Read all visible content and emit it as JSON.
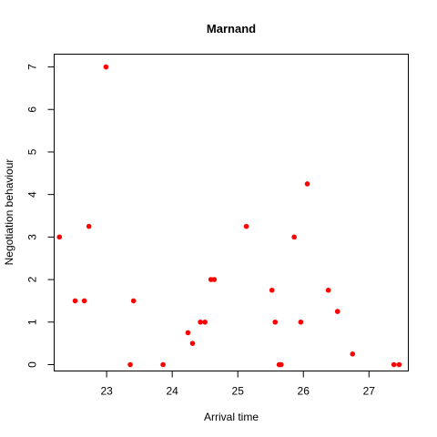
{
  "chart_data": {
    "type": "scatter",
    "title": "Marnand",
    "xlabel": "Arrival time",
    "ylabel": "Negotiation behaviour",
    "xlim": [
      22.2,
      27.6
    ],
    "ylim": [
      -0.15,
      7.3
    ],
    "x_ticks": [
      23,
      24,
      25,
      26,
      27
    ],
    "y_ticks": [
      0,
      1,
      2,
      3,
      4,
      5,
      6,
      7
    ],
    "point_color": "#FF0000",
    "grid": false,
    "points": [
      {
        "x": 22.28,
        "y": 3
      },
      {
        "x": 22.52,
        "y": 1.5
      },
      {
        "x": 22.66,
        "y": 1.5
      },
      {
        "x": 22.73,
        "y": 3.25
      },
      {
        "x": 22.99,
        "y": 7
      },
      {
        "x": 23.36,
        "y": 0
      },
      {
        "x": 23.41,
        "y": 1.5
      },
      {
        "x": 23.86,
        "y": 0
      },
      {
        "x": 24.24,
        "y": 0.75
      },
      {
        "x": 24.31,
        "y": 0.5
      },
      {
        "x": 24.43,
        "y": 1
      },
      {
        "x": 24.5,
        "y": 1
      },
      {
        "x": 24.59,
        "y": 2
      },
      {
        "x": 24.64,
        "y": 2
      },
      {
        "x": 25.13,
        "y": 3.25
      },
      {
        "x": 25.52,
        "y": 1.75
      },
      {
        "x": 25.57,
        "y": 1
      },
      {
        "x": 25.63,
        "y": 0
      },
      {
        "x": 25.66,
        "y": 0
      },
      {
        "x": 25.86,
        "y": 3
      },
      {
        "x": 25.96,
        "y": 1
      },
      {
        "x": 26.06,
        "y": 4.25
      },
      {
        "x": 26.38,
        "y": 1.75
      },
      {
        "x": 26.52,
        "y": 1.25
      },
      {
        "x": 26.75,
        "y": 0.25
      },
      {
        "x": 27.38,
        "y": 0
      },
      {
        "x": 27.46,
        "y": 0
      }
    ]
  }
}
